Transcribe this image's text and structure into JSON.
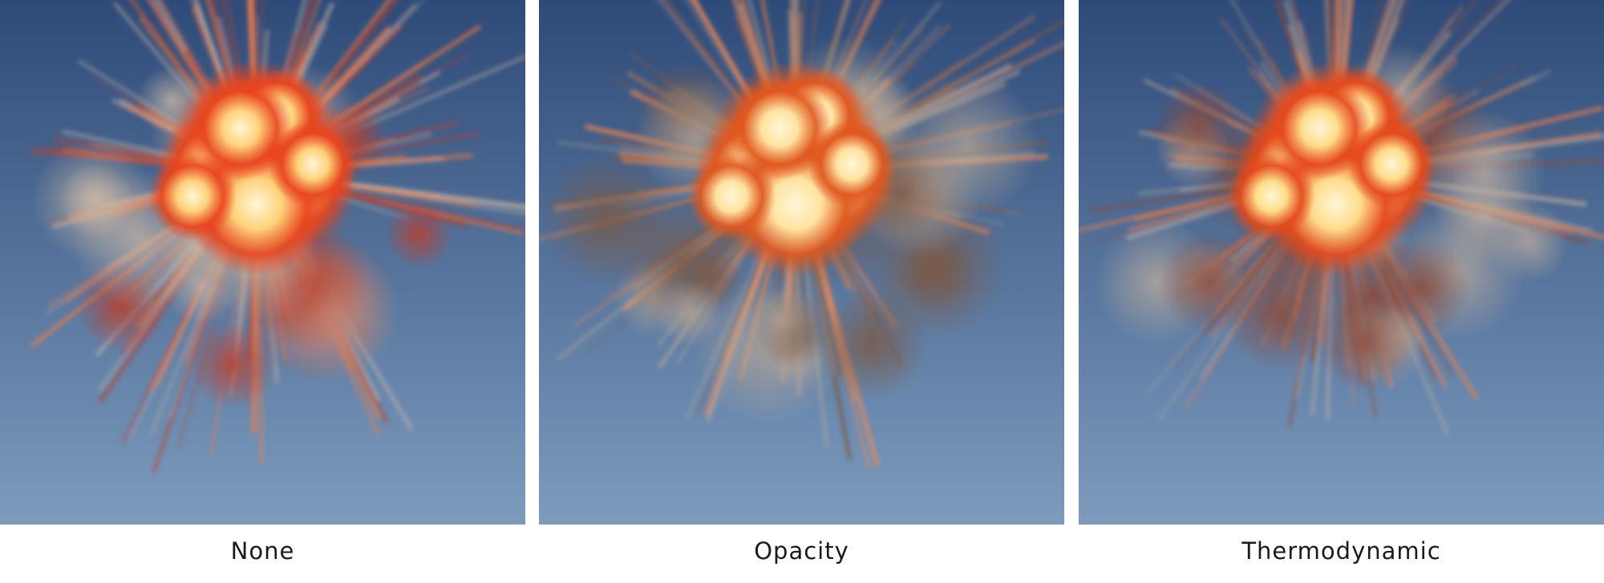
{
  "panels": [
    {
      "caption": "None",
      "scene": "explosion",
      "colors": {
        "sky_top": "#2e4a78",
        "sky_bottom": "#7c9bbd",
        "core": "#ffd27a",
        "fire": "#e8451e",
        "smoke": "#b84030",
        "streak": "#ff7a3d",
        "dust": "#c9b7a5"
      }
    },
    {
      "caption": "Opacity",
      "scene": "explosion",
      "colors": {
        "sky_top": "#2e4a78",
        "sky_bottom": "#7c9bbd",
        "core": "#ffe3a0",
        "fire": "#e0571f",
        "smoke": "#7a5a48",
        "streak": "#ff8a4a",
        "dust": "#b8a898"
      }
    },
    {
      "caption": "Thermodynamic",
      "scene": "explosion",
      "colors": {
        "sky_top": "#2e4a78",
        "sky_bottom": "#7c9bbd",
        "core": "#ffdc8a",
        "fire": "#e54a1c",
        "smoke": "#8a4a3a",
        "streak": "#ff7f42",
        "dust": "#bfae9e"
      }
    }
  ]
}
